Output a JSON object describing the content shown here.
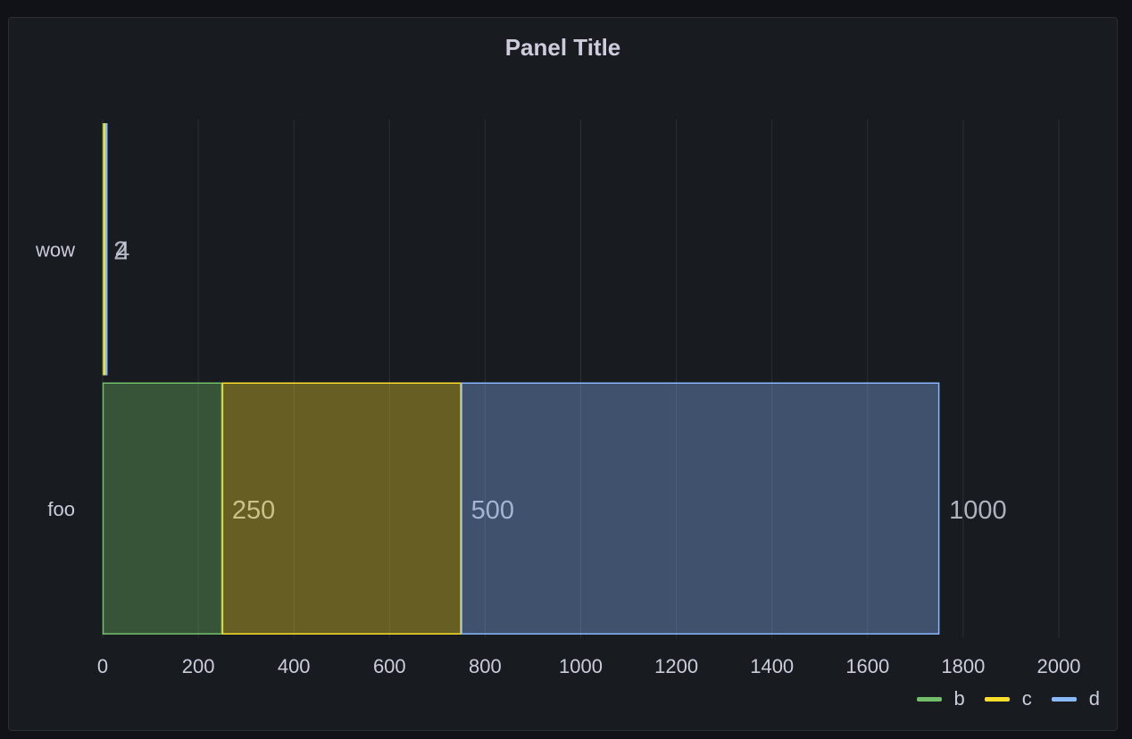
{
  "panel": {
    "title": "Panel Title"
  },
  "chart_data": {
    "type": "bar",
    "orientation": "horizontal",
    "stacked": true,
    "title": "Panel Title",
    "categories": [
      "wow",
      "foo"
    ],
    "series": [
      {
        "name": "b",
        "color": "#73bf69",
        "values": [
          2,
          250
        ]
      },
      {
        "name": "c",
        "color": "#fade2a",
        "values": [
          4,
          500
        ]
      },
      {
        "name": "d",
        "color": "#8ab8ff",
        "values": [
          1,
          1000
        ]
      }
    ],
    "value_labels": {
      "wow": [
        "2",
        "4"
      ],
      "foo": [
        "250",
        "500",
        "1000"
      ]
    },
    "xlim": [
      0,
      2000
    ],
    "xticks": [
      "0",
      "200",
      "400",
      "600",
      "800",
      "1000",
      "1200",
      "1400",
      "1600",
      "1800",
      "2000"
    ],
    "grid": true,
    "legend_position": "bottom-right"
  }
}
